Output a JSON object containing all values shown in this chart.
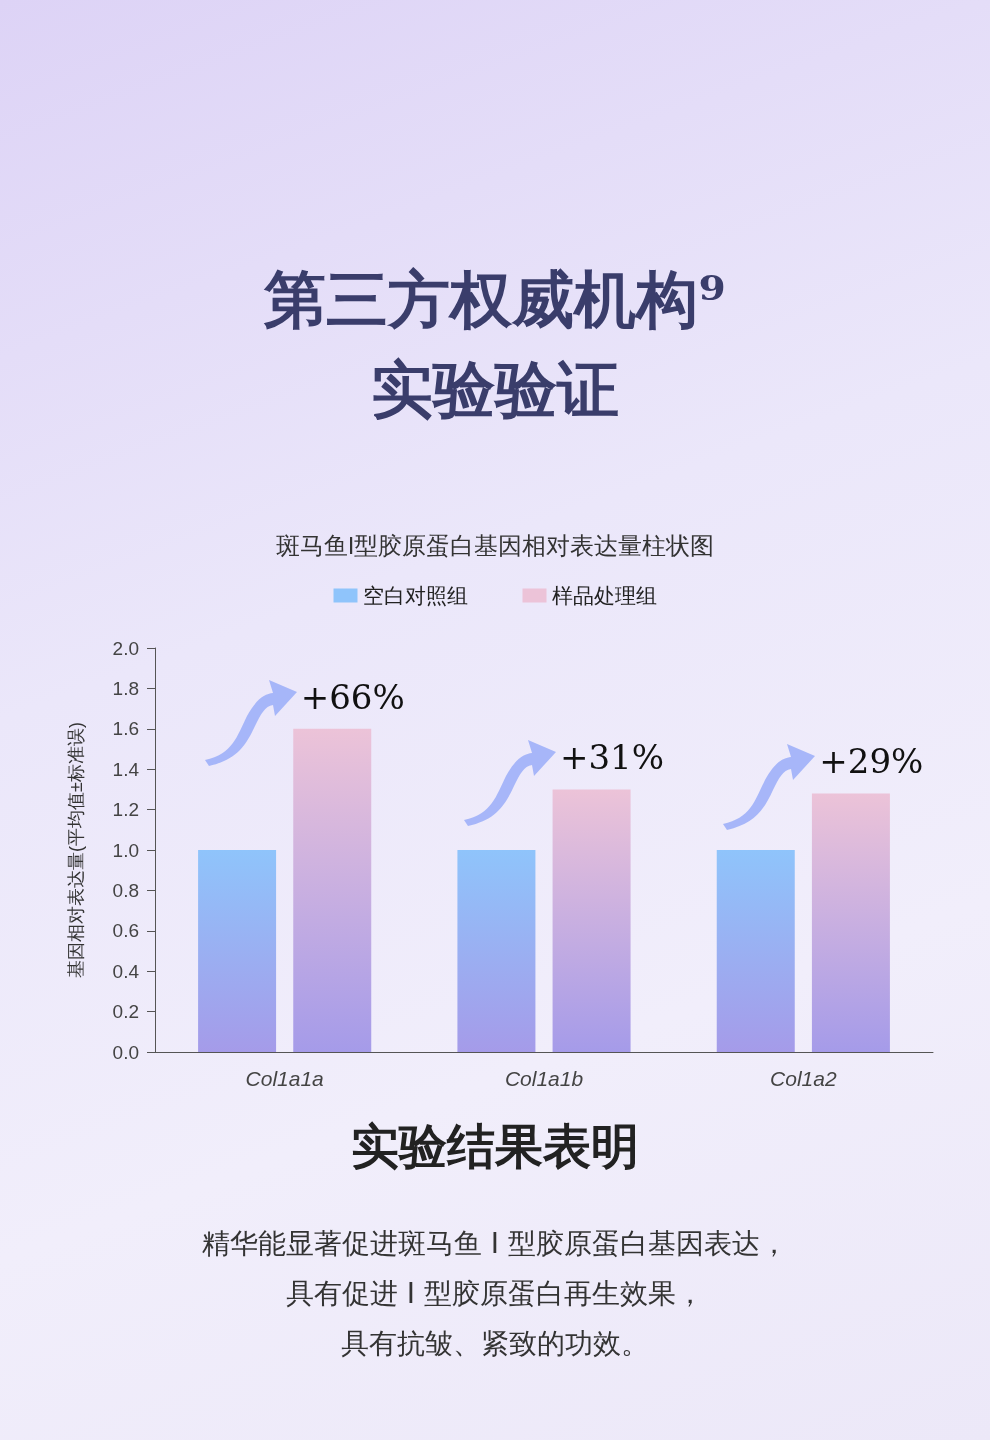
{
  "chart_data": {
    "type": "bar",
    "title": "第三方权威机构⁹\n实验验证",
    "subtitle": "斑马鱼I型胶原蛋白基因相对表达量柱状图",
    "ylabel": "基因相对表达量(平均值±标准误)",
    "categories": [
      "Col1a1a",
      "Col1a1b",
      "Col1a2"
    ],
    "series": [
      {
        "name": "空白对照组",
        "color": "#8fc4fb",
        "values": [
          1.0,
          1.0,
          1.0
        ]
      },
      {
        "name": "样品处理组",
        "color": "#ecc3d8",
        "values": [
          1.6,
          1.3,
          1.28
        ]
      }
    ],
    "ylim": [
      0,
      2
    ],
    "yticks": [
      {
        "value": 0,
        "label": "0.0"
      },
      0.2,
      0.4,
      0.6,
      0.8,
      {
        "value": 1,
        "label": "1.0"
      },
      1.2,
      1.4,
      1.6,
      1.8,
      {
        "value": 2,
        "label": "2.0"
      }
    ],
    "grid": false,
    "legend": "top",
    "annotations": [
      "+66%",
      "+31%",
      "+29%",
      "实验结果表明",
      "精华能显著促进斑马鱼 I 型胶原蛋白基因表达，",
      "具有促进 I 型胶原蛋白再生效果，",
      "具有抗皱、紧致的功效。"
    ]
  }
}
